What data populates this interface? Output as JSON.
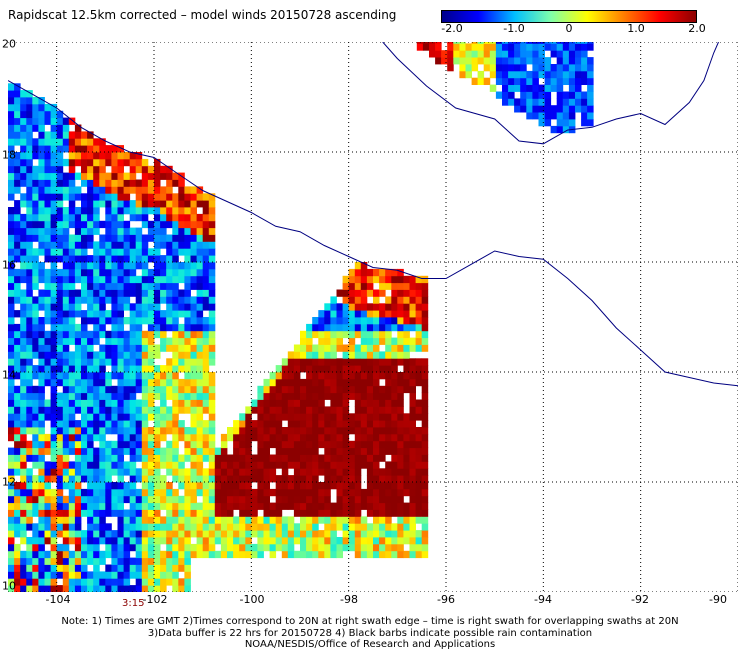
{
  "title": "Rapidscat 12.5km corrected – model winds 20150728 ascending",
  "colorbar": {
    "ticks": [
      "-2.0",
      "-1.0",
      "0",
      "1.0",
      "2.0"
    ],
    "values": [
      -2.0,
      -1.0,
      0.0,
      1.0,
      2.0
    ],
    "colors": [
      "#00008b",
      "#0000ff",
      "#00bfff",
      "#7fffaa",
      "#ffff00",
      "#ff7f00",
      "#ff0000",
      "#8b0000"
    ]
  },
  "map": {
    "lon_range": [
      -105,
      -90
    ],
    "lat_range": [
      10,
      20
    ],
    "x_ticks": [
      "-104",
      "-102",
      "-100",
      "-98",
      "-96",
      "-94",
      "-92",
      "-90"
    ],
    "x_tick_values": [
      -104,
      -102,
      -100,
      -98,
      -96,
      -94,
      -92,
      -90
    ],
    "y_ticks": [
      "20",
      "18",
      "16",
      "14",
      "12",
      "10"
    ],
    "y_tick_values": [
      20,
      18,
      16,
      14,
      12,
      10
    ],
    "grid": "dotted",
    "coastline_color": "#000080"
  },
  "time_label": "3:15",
  "notes": [
    "Note: 1) Times are GMT 2)Times correspond to 20N at right swath edge – time is right swath for overlapping swaths at 20N",
    "3)Data buffer is 22 hrs for 20150728 4) Black barbs indicate possible rain contamination",
    "NOAA/NESDIS/Office of Research and Applications"
  ]
}
